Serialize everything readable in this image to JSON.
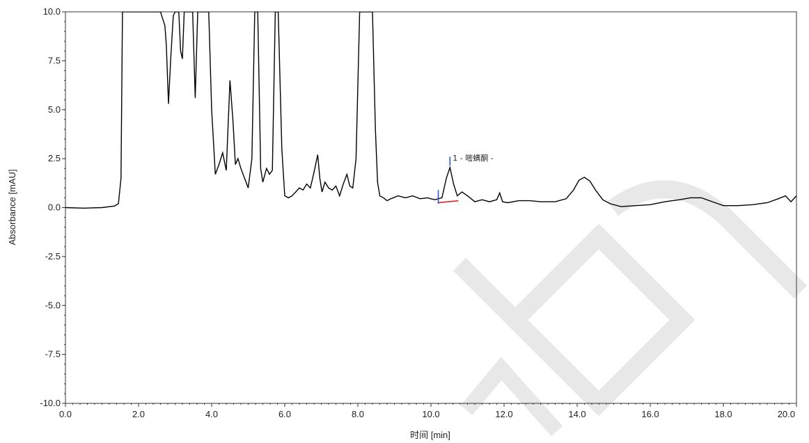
{
  "chart_data": {
    "type": "line",
    "xlabel": "时间 [min]",
    "ylabel": "Absorbance [mAU]",
    "xlim": [
      0,
      20
    ],
    "ylim": [
      -10,
      10
    ],
    "x_ticks": [
      "0.0",
      "2.0",
      "4.0",
      "6.0",
      "8.0",
      "10.0",
      "12.0",
      "14.0",
      "16.0",
      "18.0",
      "20.0"
    ],
    "y_ticks": [
      "10.0",
      "7.5",
      "5.0",
      "2.5",
      "0.0",
      "-2.5",
      "-5.0",
      "-7.5",
      "-10.0"
    ],
    "grid": false,
    "series": [
      {
        "color": "#000000",
        "x": [
          0.0,
          0.5,
          1.0,
          1.35,
          1.45,
          1.52,
          1.56,
          2.6,
          2.72,
          2.76,
          2.82,
          2.88,
          2.95,
          3.0,
          3.1,
          3.15,
          3.2,
          3.25,
          3.3,
          3.48,
          3.55,
          3.62,
          3.7,
          3.92,
          4.0,
          4.1,
          4.2,
          4.3,
          4.4,
          4.5,
          4.58,
          4.65,
          4.72,
          4.8,
          4.9,
          5.0,
          5.1,
          5.18,
          5.26,
          5.34,
          5.4,
          5.5,
          5.58,
          5.66,
          5.74,
          5.82,
          5.92,
          6.0,
          6.1,
          6.2,
          6.3,
          6.4,
          6.5,
          6.6,
          6.7,
          6.8,
          6.9,
          6.96,
          7.02,
          7.1,
          7.2,
          7.3,
          7.4,
          7.5,
          7.6,
          7.7,
          7.78,
          7.86,
          7.95,
          8.05,
          8.15,
          8.22,
          8.28,
          8.4,
          8.48,
          8.54,
          8.6,
          8.7,
          8.8,
          8.9,
          9.1,
          9.3,
          9.5,
          9.7,
          9.9,
          10.1,
          10.3,
          10.42,
          10.52,
          10.62,
          10.72,
          10.85,
          11.0,
          11.2,
          11.4,
          11.6,
          11.8,
          11.88,
          11.96,
          12.1,
          12.4,
          12.7,
          13.0,
          13.4,
          13.7,
          13.9,
          14.05,
          14.2,
          14.35,
          14.5,
          14.7,
          14.9,
          15.2,
          15.6,
          16.0,
          16.4,
          16.8,
          17.1,
          17.4,
          17.7,
          18.0,
          18.4,
          18.8,
          19.2,
          19.5,
          19.7,
          19.85,
          20.0
        ],
        "y": [
          0.0,
          -0.03,
          0.0,
          0.08,
          0.2,
          1.5,
          10.0,
          10.0,
          9.3,
          8.3,
          5.3,
          7.6,
          9.8,
          10.0,
          10.0,
          8.0,
          7.6,
          10.0,
          10.0,
          10.0,
          5.6,
          10.0,
          10.0,
          10.0,
          5.0,
          1.7,
          2.2,
          2.8,
          1.9,
          6.5,
          4.5,
          2.2,
          2.5,
          2.0,
          1.5,
          1.0,
          2.5,
          10.0,
          10.0,
          2.0,
          1.3,
          2.0,
          1.7,
          1.9,
          10.0,
          10.0,
          3.0,
          0.6,
          0.5,
          0.6,
          0.8,
          1.0,
          0.9,
          1.2,
          1.0,
          1.8,
          2.7,
          1.5,
          0.8,
          1.3,
          1.0,
          0.9,
          1.1,
          0.6,
          1.2,
          1.7,
          1.1,
          1.0,
          2.5,
          10.0,
          10.0,
          10.0,
          10.0,
          10.0,
          4.0,
          1.3,
          0.6,
          0.5,
          0.35,
          0.45,
          0.6,
          0.5,
          0.6,
          0.45,
          0.5,
          0.4,
          0.5,
          1.5,
          2.05,
          1.2,
          0.6,
          0.8,
          0.6,
          0.3,
          0.4,
          0.3,
          0.4,
          0.75,
          0.3,
          0.25,
          0.35,
          0.35,
          0.3,
          0.3,
          0.45,
          0.9,
          1.4,
          1.55,
          1.35,
          0.9,
          0.4,
          0.2,
          0.05,
          0.1,
          0.15,
          0.3,
          0.4,
          0.5,
          0.5,
          0.3,
          0.1,
          0.1,
          0.15,
          0.25,
          0.45,
          0.6,
          0.3,
          0.6
        ]
      }
    ],
    "annotations": [
      {
        "x": 10.52,
        "y": 2.05,
        "text": "1 - 嘧螨酮 -"
      }
    ],
    "baseline_segment": {
      "x": [
        10.2,
        10.75
      ],
      "y": [
        0.25,
        0.35
      ],
      "color": "#d62728"
    },
    "peak_markers": {
      "x": [
        10.2,
        10.52
      ],
      "color": "#1f4fd8"
    }
  }
}
